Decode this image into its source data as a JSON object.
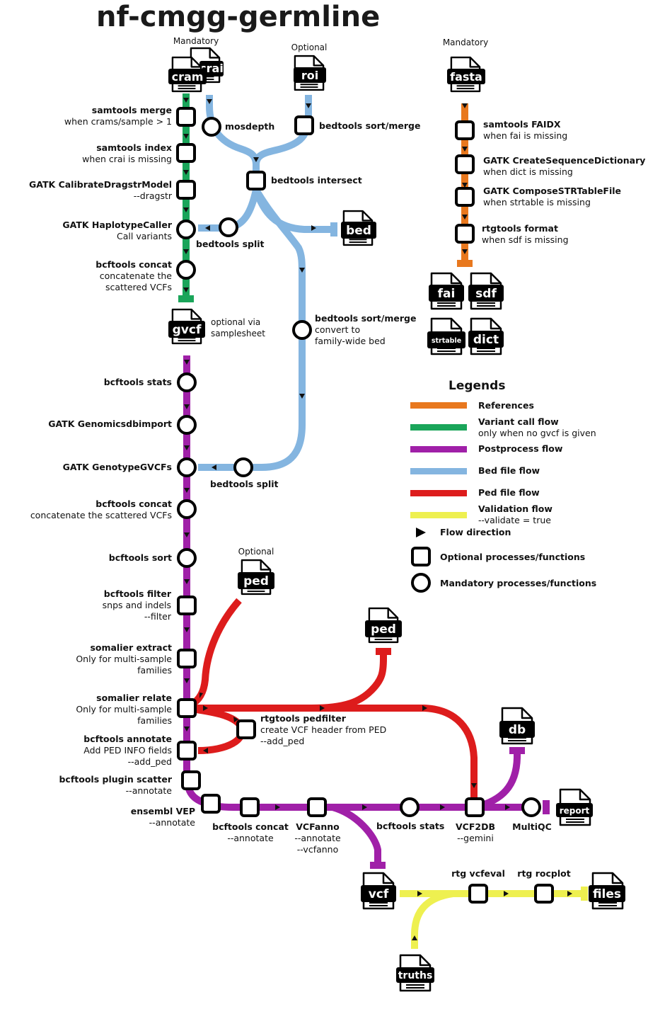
{
  "title": "nf-cmgg-germline",
  "colors": {
    "references": "#e8781e",
    "variant": "#1aa55a",
    "postprocess": "#a020a8",
    "bed": "#84b5e0",
    "ped": "#dd1c1c",
    "validation": "#eef050"
  },
  "files": {
    "cram": "cram",
    "crai": "crai",
    "roi": "roi",
    "fasta": "fasta",
    "bed": "bed",
    "gvcf": "gvcf",
    "fai": "fai",
    "sdf": "sdf",
    "strtable": "strtable",
    "dict": "dict",
    "ped_in": "ped",
    "ped_out": "ped",
    "db": "db",
    "report": "report",
    "vcf": "vcf",
    "files": "files",
    "truths": "truths"
  },
  "notes": {
    "mandatory_left": "Mandatory",
    "optional_roi": "Optional",
    "mandatory_fasta": "Mandatory",
    "optional_ped": "Optional",
    "gvcf_note1": "optional via",
    "gvcf_note2": "samplesheet"
  },
  "steps": {
    "samtools_merge": {
      "name": "samtools merge",
      "sub1": "when crams/sample > 1"
    },
    "samtools_index": {
      "name": "samtools index",
      "sub1": "when crai is missing"
    },
    "calibrate": {
      "name": "GATK CalibrateDragstrModel",
      "sub1": "--dragstr"
    },
    "haplotypecaller": {
      "name": "GATK HaplotypeCaller",
      "sub1": "Call variants"
    },
    "bcftools_concat1": {
      "name": "bcftools concat",
      "sub1": "concatenate the",
      "sub2": "scattered VCFs"
    },
    "mosdepth": {
      "name": "mosdepth"
    },
    "bedtools_sortmerge1": {
      "name": "bedtools sort/merge"
    },
    "bedtools_intersect": {
      "name": "bedtools intersect"
    },
    "bedtools_split1": {
      "name": "bedtools split"
    },
    "bedtools_sortmerge2": {
      "name": "bedtools sort/merge",
      "sub1": "convert to",
      "sub2": "family-wide bed"
    },
    "samtools_faidx": {
      "name": "samtools FAIDX",
      "sub1": "when fai is missing"
    },
    "createseqdict": {
      "name": "GATK CreateSequenceDictionary",
      "sub1": "when dict is missing"
    },
    "composestr": {
      "name": "GATK ComposeSTRTableFile",
      "sub1": "when strtable is missing"
    },
    "rtgtools_format": {
      "name": "rtgtools format",
      "sub1": "when sdf is missing"
    },
    "bcftools_stats1": {
      "name": "bcftools stats"
    },
    "genomicsdb": {
      "name": "GATK Genomicsdbimport"
    },
    "genotypegvcfs": {
      "name": "GATK GenotypeGVCFs"
    },
    "bedtools_split2": {
      "name": "bedtools split"
    },
    "bcftools_concat2": {
      "name": "bcftools concat",
      "sub1": "concatenate the scattered VCFs"
    },
    "bcftools_sort": {
      "name": "bcftools sort"
    },
    "bcftools_filter": {
      "name": "bcftools filter",
      "sub1": "snps and indels",
      "sub2": "--filter"
    },
    "somalier_extract": {
      "name": "somalier extract",
      "sub1": "Only for multi-sample",
      "sub2": "families"
    },
    "somalier_relate": {
      "name": "somalier relate",
      "sub1": "Only for multi-sample",
      "sub2": "families"
    },
    "rtgtools_pedfilter": {
      "name": "rtgtools pedfilter",
      "sub1": "create VCF header from PED",
      "sub2": "--add_ped"
    },
    "bcftools_annotate": {
      "name": "bcftools annotate",
      "sub1": "Add PED INFO fields",
      "sub2": "--add_ped"
    },
    "plugin_scatter": {
      "name": "bcftools plugin scatter",
      "sub1": "--annotate"
    },
    "ensembl_vep": {
      "name": "ensembl VEP",
      "sub1": "--annotate"
    },
    "bcftools_concat3": {
      "name": "bcftools concat",
      "sub1": "--annotate"
    },
    "vcfanno": {
      "name": "VCFanno",
      "sub1": "--annotate",
      "sub2": "--vcfanno"
    },
    "bcftools_stats2": {
      "name": "bcftools stats"
    },
    "vcf2db": {
      "name": "VCF2DB",
      "sub1": "--gemini"
    },
    "multiqc": {
      "name": "MultiQC"
    },
    "rtg_vcfeval": {
      "name": "rtg vcfeval"
    },
    "rtg_rocplot": {
      "name": "rtg rocplot"
    }
  },
  "legend": {
    "title": "Legends",
    "references": "References",
    "variant": "Variant call flow",
    "variant_sub": "only when no gvcf is given",
    "postprocess": "Postprocess flow",
    "bed": "Bed file flow",
    "ped": "Ped file flow",
    "validation": "Validation flow",
    "validation_sub": "--validate = true",
    "flow": "Flow direction",
    "optional": "Optional processes/functions",
    "mandatory": "Mandatory processes/functions"
  }
}
